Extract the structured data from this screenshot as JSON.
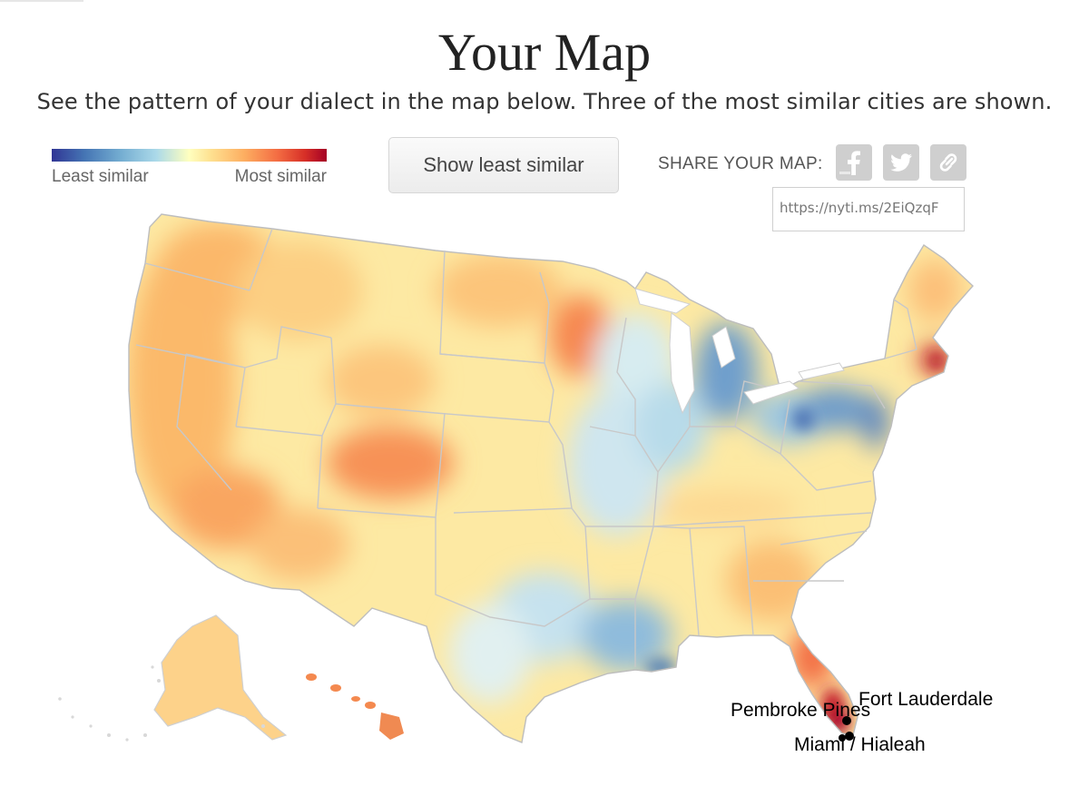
{
  "header": {
    "title": "Your Map",
    "subtitle": "See the pattern of your dialect in the map below. Three of the most similar cities are shown."
  },
  "legend": {
    "least_label": "Least similar",
    "most_label": "Most similar",
    "gradient_colors": [
      "#313695",
      "#4575b4",
      "#74add1",
      "#abd9e9",
      "#ffffbf",
      "#fee090",
      "#fdae61",
      "#f46d43",
      "#d73027",
      "#a50026"
    ]
  },
  "toggle_button": {
    "label": "Show least similar"
  },
  "share": {
    "label": "SHARE YOUR MAP:",
    "icons": [
      "facebook-icon",
      "twitter-icon",
      "link-icon"
    ],
    "url": "https://nyti.ms/2EiQzqF"
  },
  "cities": [
    {
      "label": "Fort Lauderdale"
    },
    {
      "label": "Pembroke Pines"
    },
    {
      "label": "Miami / Hialeah"
    }
  ]
}
